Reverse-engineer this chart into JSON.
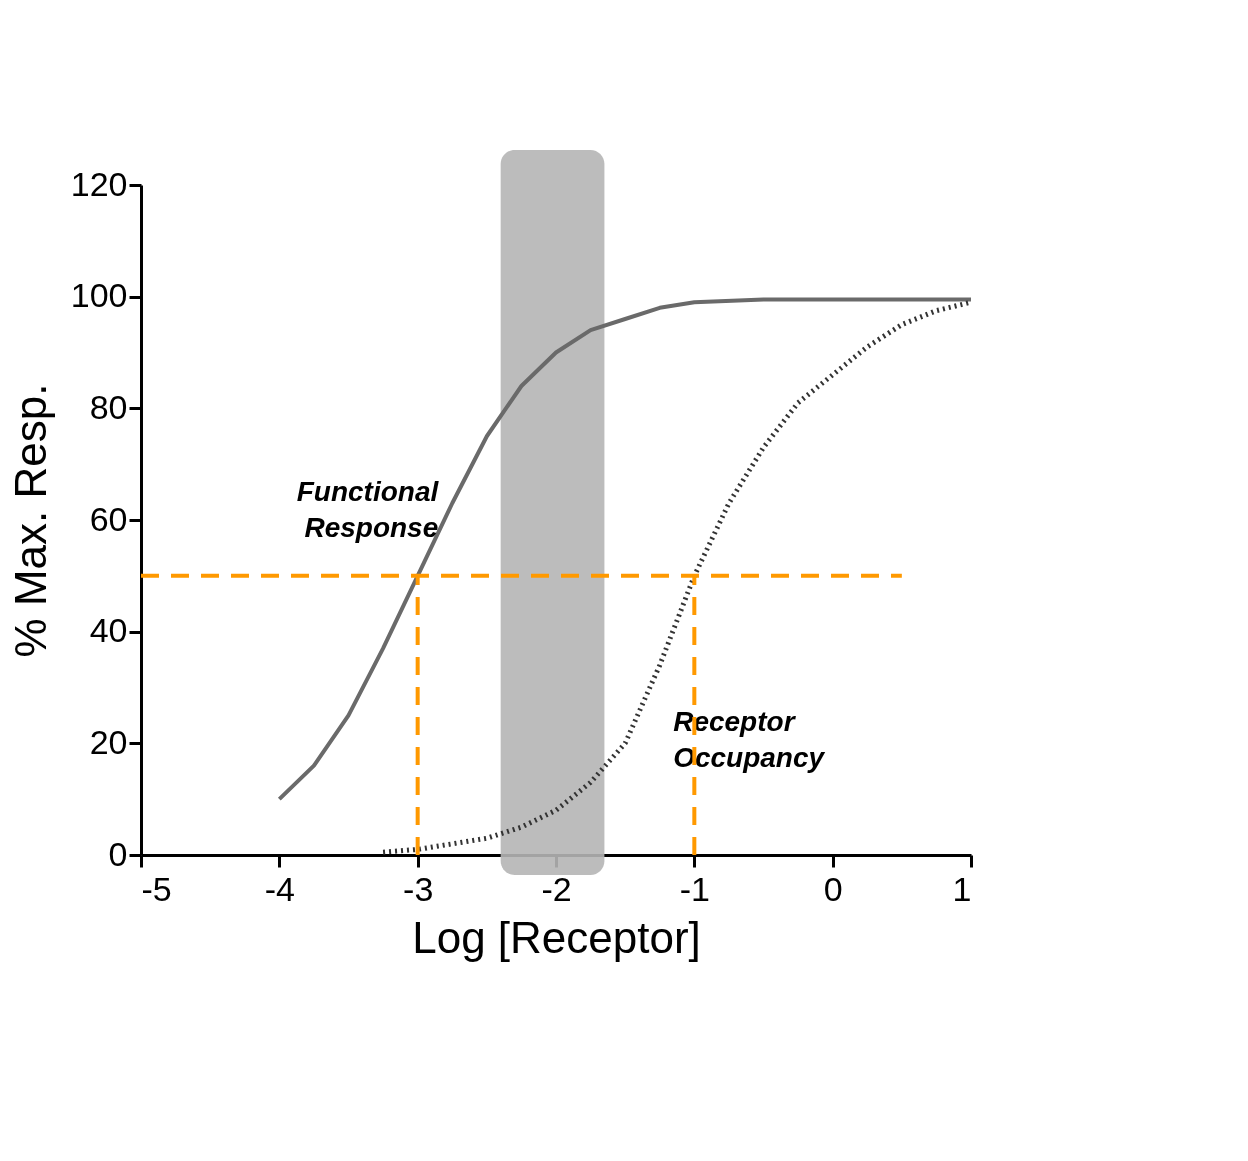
{
  "chart_data": {
    "type": "line",
    "xlabel": "Log [Receptor]",
    "ylabel": "% Max. Resp.",
    "xlim": [
      -5,
      1
    ],
    "xticks": [
      -5,
      -4,
      -3,
      -2,
      -1,
      0,
      1
    ],
    "ylim": [
      0,
      120
    ],
    "yticks": [
      0,
      20,
      40,
      60,
      80,
      100,
      120
    ],
    "grid": false,
    "legend": false,
    "marker": "none",
    "series": [
      {
        "name": "Functional Response",
        "color": "#6a6a6a",
        "line_style": "solid",
        "x": [
          -4,
          -3.75,
          -3.5,
          -3.25,
          -3,
          -2.75,
          -2.5,
          -2.25,
          -2,
          -1.75,
          -1.5,
          -1.25,
          -1,
          -0.5,
          0,
          0.5,
          1
        ],
        "values": [
          10,
          16,
          25,
          37,
          50,
          63,
          75,
          84,
          90,
          94,
          96,
          98,
          99,
          99.5,
          99.5,
          99.5,
          99.5
        ]
      },
      {
        "name": "Receptor Occupancy",
        "color": "#333333",
        "line_style": "dotted",
        "x": [
          -3.25,
          -3,
          -2.75,
          -2.5,
          -2.25,
          -2,
          -1.75,
          -1.5,
          -1.25,
          -1,
          -0.75,
          -0.5,
          -0.25,
          0,
          0.25,
          0.5,
          0.75,
          1
        ],
        "values": [
          0.5,
          1,
          2,
          3,
          5,
          8,
          13,
          20,
          34,
          50,
          63,
          73,
          81,
          86,
          91,
          95,
          97.5,
          99
        ]
      },
      {
        "color": "#ff9900",
        "line_style": "dashed",
        "x": [
          -5,
          0.5
        ],
        "values": [
          50,
          50
        ]
      },
      {
        "color": "#ff9900",
        "line_style": "dashed",
        "x": [
          -3,
          -3
        ],
        "values": [
          0,
          50
        ]
      },
      {
        "color": "#ff9900",
        "line_style": "dashed",
        "x": [
          -1,
          -1
        ],
        "values": [
          0,
          50
        ]
      }
    ],
    "bands": [
      {
        "axis": "x",
        "from": -2.4,
        "to": -1.65,
        "color": "#b5b5b5"
      }
    ]
  }
}
